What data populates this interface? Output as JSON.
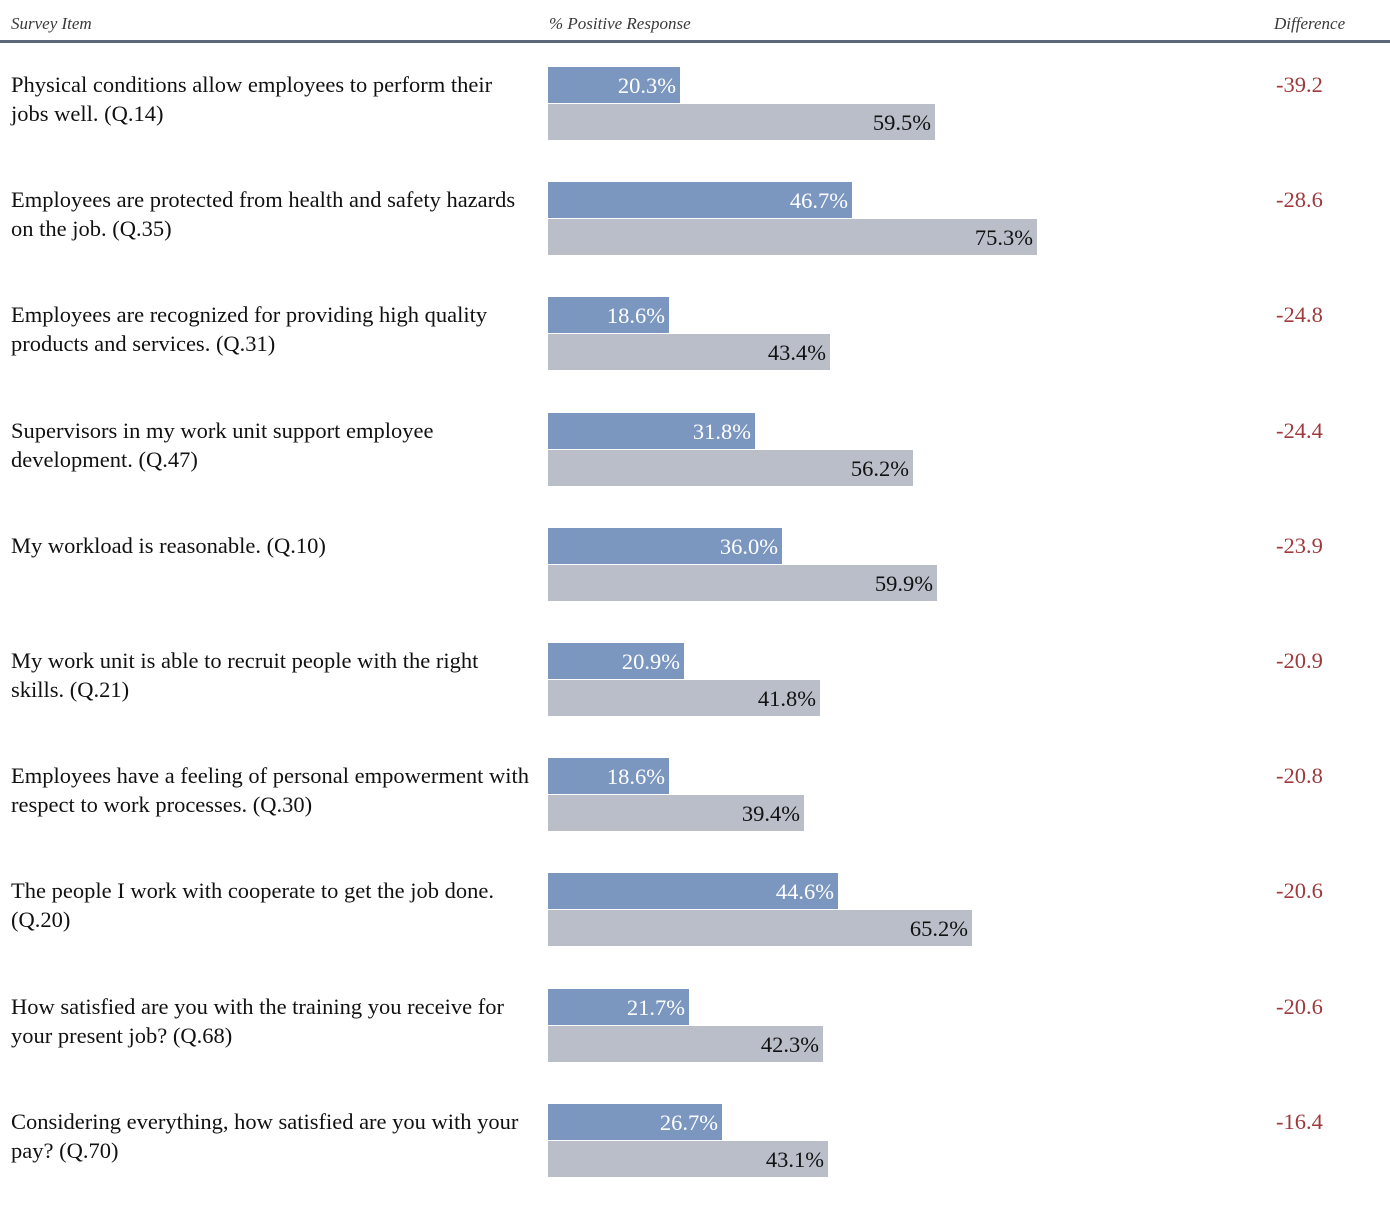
{
  "header": {
    "item": "Survey Item",
    "response": "% Positive Response",
    "difference": "Difference"
  },
  "colors": {
    "series_a": "#7b97c0",
    "series_b": "#b9bec8",
    "difference": "#9e3a3d",
    "rule": "#5a6878"
  },
  "chart_data": {
    "type": "bar",
    "orientation": "horizontal",
    "xlim": [
      0,
      100
    ],
    "grid": false,
    "legend": "none",
    "categories": [
      "Physical conditions allow employees to perform their jobs well. (Q.14)",
      "Employees are protected from health and safety hazards on the job. (Q.35)",
      "Employees are recognized for providing high quality products and services. (Q.31)",
      "Supervisors in my work unit support employee development. (Q.47)",
      "My workload is reasonable. (Q.10)",
      "My work unit is able to recruit people with the right skills. (Q.21)",
      "Employees have a feeling of personal empowerment with respect to work processes. (Q.30)",
      "The people I work with cooperate to get the job done. (Q.20)",
      "How satisfied are you with the training you receive for your present job? (Q.68)",
      "Considering everything, how satisfied are you with your pay? (Q.70)"
    ],
    "series": [
      {
        "values": [
          20.3,
          46.7,
          18.6,
          31.8,
          36.0,
          20.9,
          18.6,
          44.6,
          21.7,
          26.7
        ],
        "labels": [
          "20.3%",
          "46.7%",
          "18.6%",
          "31.8%",
          "36.0%",
          "20.9%",
          "18.6%",
          "44.6%",
          "21.7%",
          "26.7%"
        ]
      },
      {
        "values": [
          59.5,
          75.3,
          43.4,
          56.2,
          59.9,
          41.8,
          39.4,
          65.2,
          42.3,
          43.1
        ],
        "labels": [
          "59.5%",
          "75.3%",
          "43.4%",
          "56.2%",
          "59.9%",
          "41.8%",
          "39.4%",
          "65.2%",
          "42.3%",
          "43.1%"
        ]
      }
    ],
    "difference": [
      "-39.2",
      "-28.6",
      "-24.8",
      "-24.4",
      "-23.9",
      "-20.9",
      "-20.8",
      "-20.6",
      "-20.6",
      "-16.4"
    ]
  }
}
